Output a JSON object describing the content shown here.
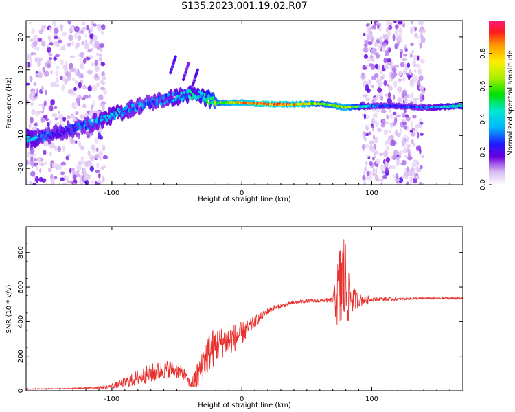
{
  "title": "S135.2023.001.19.02.R07",
  "chart_data": [
    {
      "type": "heatmap",
      "name": "spectrogram",
      "xlabel": "Height of straight line (km)",
      "ylabel": "Frequency (Hz)",
      "xlim": [
        -166,
        170
      ],
      "ylim": [
        -25,
        25
      ],
      "x_ticks": [
        -100,
        0,
        100
      ],
      "x_tick_labels": [
        "-100",
        "0",
        "100"
      ],
      "y_ticks": [
        20,
        10,
        0,
        -10,
        -20
      ],
      "y_tick_labels": [
        "20",
        "10",
        "0",
        "-10",
        "-20"
      ],
      "colorbar": {
        "label": "Normalized spectral amplitude",
        "range": [
          0,
          1
        ],
        "ticks": [
          0.0,
          0.2,
          0.4,
          0.6,
          0.8
        ],
        "tick_labels": [
          "0.0",
          "0.2",
          "0.4",
          "0.6",
          "0.8"
        ]
      },
      "ridge": {
        "x": [
          -160,
          -140,
          -120,
          -100,
          -80,
          -60,
          -40,
          -30,
          -20,
          0,
          20,
          40,
          60,
          80,
          100,
          120,
          140,
          170
        ],
        "freq": [
          -11,
          -9,
          -7,
          -4,
          -1,
          1,
          2.5,
          2,
          0,
          0,
          -0.5,
          -0.5,
          -0.3,
          -1.5,
          -1,
          -1,
          -1.5,
          -1
        ],
        "amplitude": [
          0.35,
          0.2,
          0.3,
          0.35,
          0.3,
          0.3,
          0.4,
          0.4,
          0.6,
          0.75,
          0.9,
          0.8,
          0.55,
          0.7,
          0.3,
          0.25,
          0.3,
          0.45
        ]
      },
      "noise_regions_km": [
        [
          -166,
          -105
        ],
        [
          93,
          140
        ]
      ]
    },
    {
      "type": "line",
      "name": "snr",
      "xlabel": "Height of straight line (km)",
      "ylabel": "SNR (10 * v/v)",
      "xlim": [
        -166,
        170
      ],
      "ylim": [
        0,
        950
      ],
      "x_ticks": [
        -100,
        0,
        100
      ],
      "x_tick_labels": [
        "-100",
        "0",
        "100"
      ],
      "y_ticks": [
        0,
        200,
        400,
        600,
        800
      ],
      "y_tick_labels": [
        "0",
        "200",
        "400",
        "600",
        "800"
      ],
      "color": "#e8322f",
      "series": [
        {
          "x": [
            -166,
            -140,
            -120,
            -105,
            -95,
            -85,
            -75,
            -65,
            -55,
            -45,
            -40,
            -35,
            -30,
            -25,
            -20,
            -15,
            -10,
            -5,
            0,
            5,
            10,
            15,
            20,
            25,
            30,
            40,
            50,
            60,
            70,
            75,
            78,
            80,
            82,
            85,
            90,
            100,
            120,
            140,
            170
          ],
          "y": [
            10,
            12,
            15,
            20,
            35,
            60,
            90,
            110,
            130,
            100,
            40,
            70,
            160,
            230,
            260,
            280,
            290,
            310,
            330,
            360,
            400,
            430,
            460,
            480,
            490,
            510,
            520,
            520,
            525,
            560,
            650,
            600,
            540,
            530,
            525,
            530,
            530,
            535,
            535
          ],
          "noise": [
            3,
            3,
            4,
            8,
            20,
            40,
            50,
            60,
            50,
            40,
            25,
            80,
            110,
            120,
            110,
            90,
            90,
            80,
            70,
            50,
            35,
            25,
            20,
            15,
            12,
            10,
            10,
            10,
            15,
            280,
            320,
            280,
            150,
            80,
            40,
            15,
            8,
            6,
            6
          ]
        }
      ]
    }
  ]
}
